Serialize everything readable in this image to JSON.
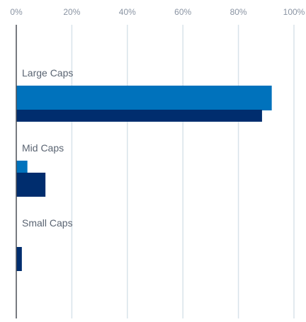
{
  "chart_data": {
    "type": "bar",
    "orientation": "horizontal",
    "x_ticks": [
      "0%",
      "20%",
      "40%",
      "60%",
      "80%",
      "100%"
    ],
    "xlim": [
      0,
      100
    ],
    "grid": true,
    "legend": "none",
    "categories": [
      "Large Caps",
      "Mid Caps",
      "Small Caps"
    ],
    "series": [
      {
        "values": [
          92,
          4,
          0
        ],
        "color": "#0072bc"
      },
      {
        "values": [
          88.5,
          10.5,
          2
        ],
        "color": "#002d6e"
      }
    ]
  },
  "colors": {
    "tick_label": "#8a94a3",
    "category_label": "#5a6472",
    "grid": "#d8e3ea",
    "axis": "#4a4f57"
  }
}
